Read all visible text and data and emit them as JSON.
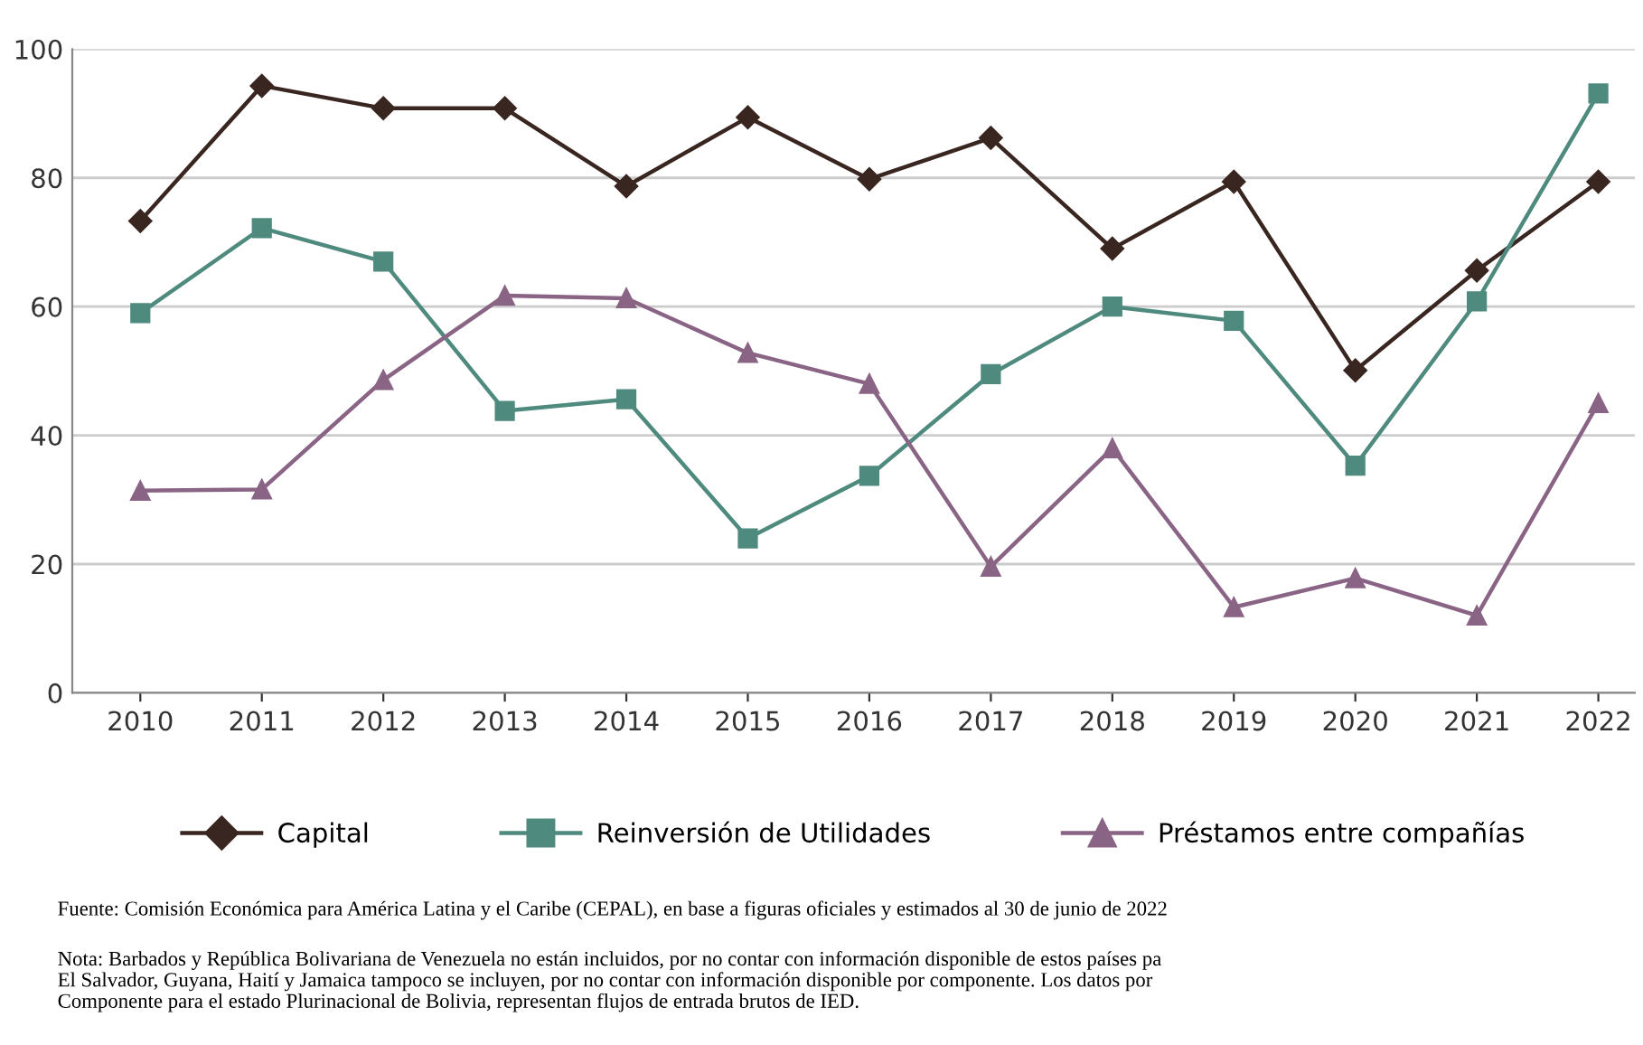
{
  "chart_data": {
    "type": "line",
    "categories": [
      "2010",
      "2011",
      "2012",
      "2013",
      "2014",
      "2015",
      "2016",
      "2017",
      "2018",
      "2019",
      "2020",
      "2021",
      "2022"
    ],
    "series": [
      {
        "name": "Capital",
        "color": "#3a2620",
        "marker": "diamond",
        "values": [
          73.3,
          94.3,
          90.8,
          90.8,
          78.7,
          89.4,
          79.8,
          86.2,
          69,
          79.4,
          50.1,
          65.6,
          79.4
        ]
      },
      {
        "name": "Reinversión de Utilidades",
        "color": "#4f8a7e",
        "marker": "square",
        "values": [
          59,
          72.2,
          67,
          43.8,
          45.6,
          24,
          33.7,
          49.5,
          60,
          57.8,
          35.3,
          60.8,
          93.1
        ]
      },
      {
        "name": "Préstamos entre compañías",
        "color": "#8a6485",
        "marker": "triangle",
        "values": [
          31.4,
          31.6,
          48.6,
          61.7,
          61.3,
          52.8,
          48,
          19.6,
          38,
          13.3,
          17.8,
          12,
          45
        ]
      }
    ],
    "ylim": [
      0,
      100
    ],
    "yticks": [
      0,
      20,
      40,
      60,
      80,
      100
    ],
    "grid": "y",
    "legend": "bottom",
    "line_style": "solid",
    "annotations": [
      "Fuente: Comisión Económica para América Latina y el Caribe (CEPAL), en base a figuras oficiales y estimados al 30 de junio de 2022",
      "Nota: Barbados y República Bolivariana de Venezuela no están incluidos, por no contar con información disponible de estos países pa\nEl Salvador, Guyana, Haití y Jamaica tampoco se incluyen, por no contar con información disponible por componente. Los datos por\nComponente para el estado Plurinacional de Bolivia, representan flujos de entrada brutos de IED."
    ]
  }
}
